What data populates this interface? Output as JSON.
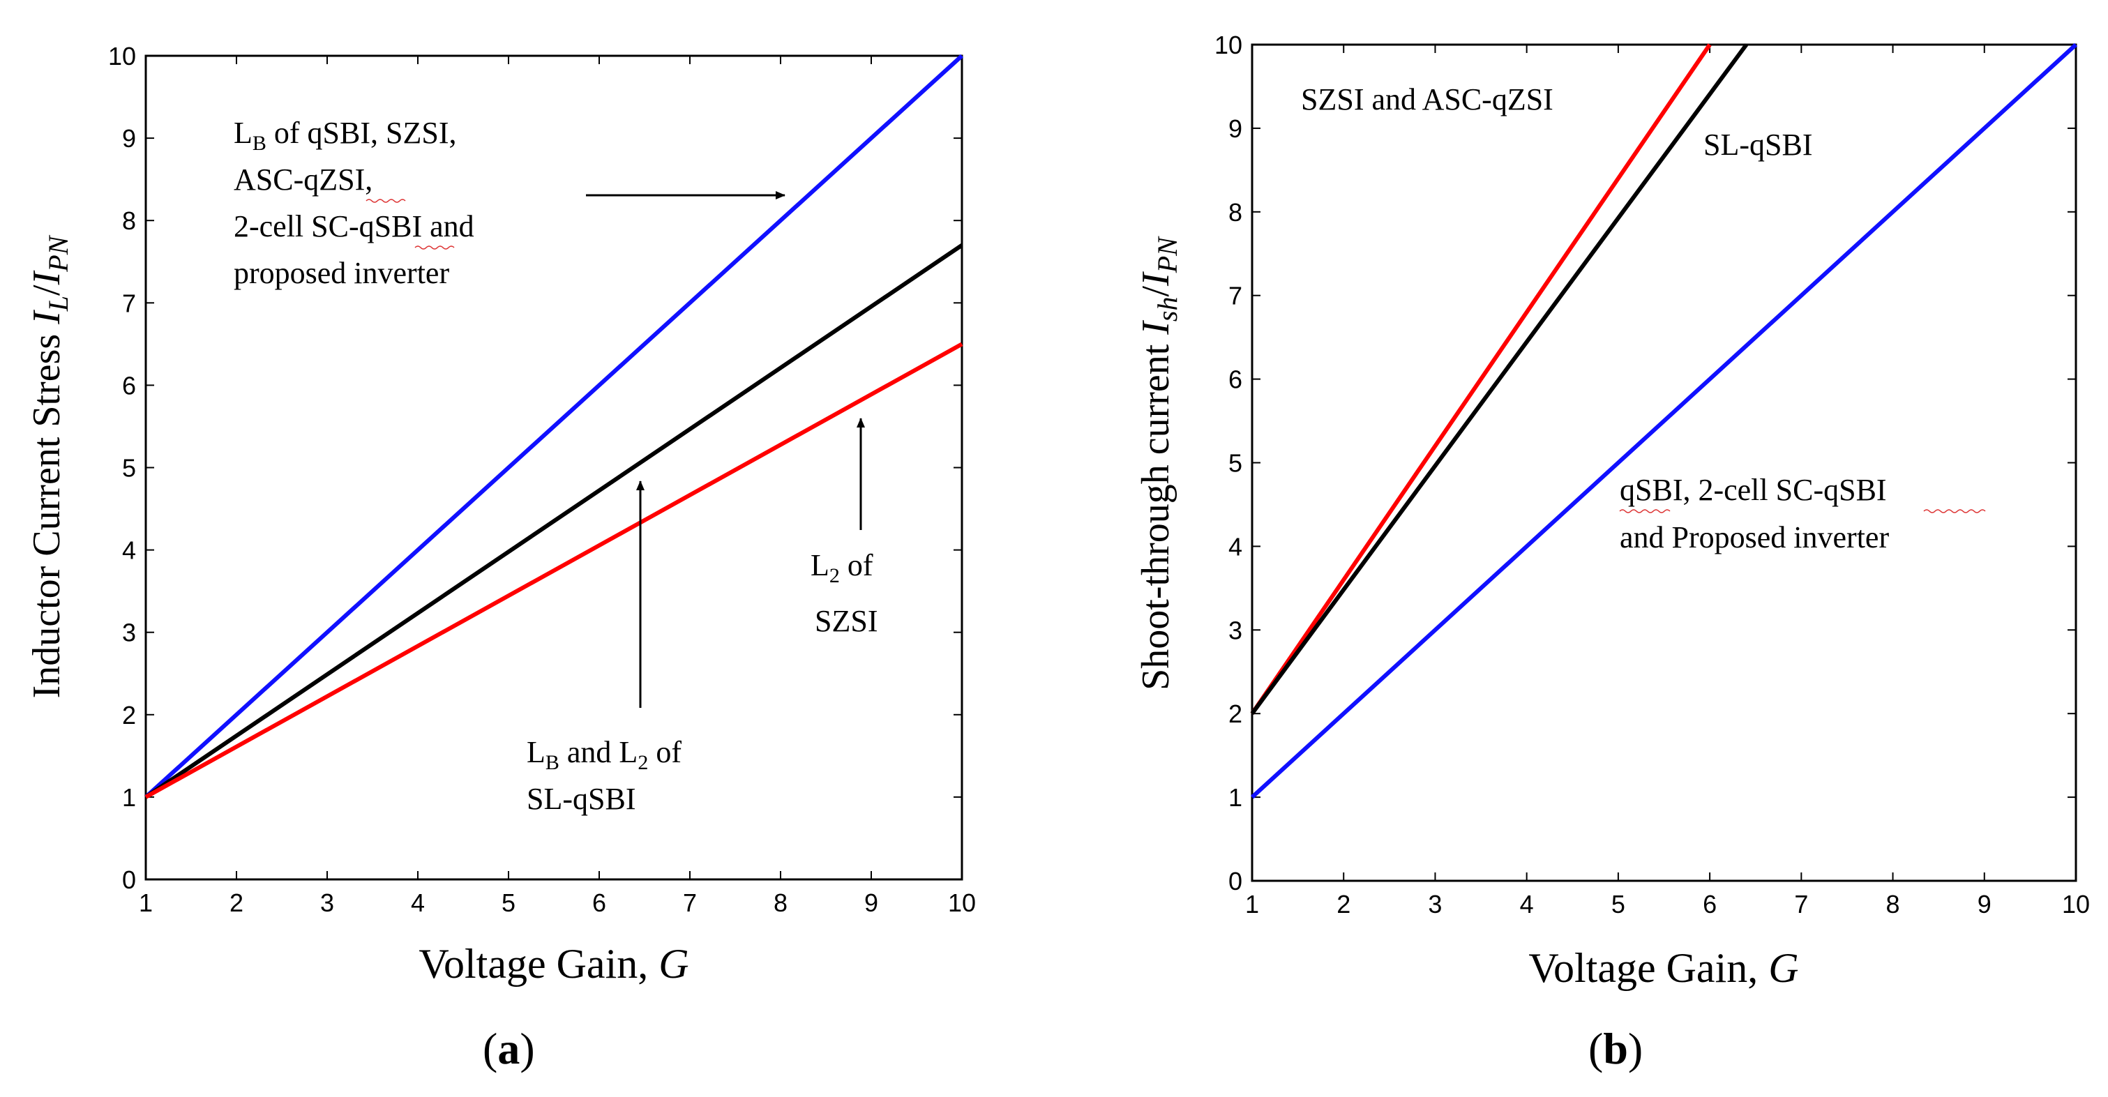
{
  "chart_data": [
    {
      "type": "line",
      "panel_label": "a",
      "xlabel": "Voltage Gain, ",
      "xlabel_var": "G",
      "ylabel": "Inductor Current Stress ",
      "ylabel_var": "I",
      "ylabel_var_sub": "L",
      "ylabel_den": "I",
      "ylabel_den_sub": "PN",
      "xlim": [
        1,
        10
      ],
      "ylim": [
        0,
        10
      ],
      "xticks": [
        "1",
        "2",
        "3",
        "4",
        "5",
        "6",
        "7",
        "8",
        "9",
        "10"
      ],
      "yticks": [
        "0",
        "1",
        "2",
        "3",
        "4",
        "5",
        "6",
        "7",
        "8",
        "9",
        "10"
      ],
      "grid": false,
      "series": [
        {
          "name": "LB of qSBI, SZSI, ASC-qZSI, 2-cell SC-qSBI and proposed inverter",
          "color": "#1010ff",
          "x": [
            1,
            10
          ],
          "y": [
            1,
            10
          ]
        },
        {
          "name": "LB and L2 of SL-qSBI",
          "color": "#000000",
          "x": [
            1,
            10
          ],
          "y": [
            1,
            7.7
          ]
        },
        {
          "name": "L2 of SZSI",
          "color": "#ff0000",
          "x": [
            1,
            10
          ],
          "y": [
            1,
            6.5
          ]
        }
      ],
      "annotations": [
        {
          "lines": [
            [
              "L",
              "B",
              " of qSBI, SZSI,"
            ],
            [
              "ASC-qZSI,"
            ],
            [
              "2-cell  SC-qSBI and"
            ],
            [
              "proposed inverter"
            ]
          ]
        },
        {
          "lines": [
            [
              "L",
              "B",
              " and L",
              "2",
              " of"
            ],
            [
              "SL-qSBI"
            ]
          ]
        },
        {
          "lines": [
            [
              "L",
              "2",
              " of"
            ],
            [
              "SZSI"
            ]
          ]
        }
      ]
    },
    {
      "type": "line",
      "panel_label": "b",
      "xlabel": "Voltage Gain, ",
      "xlabel_var": "G",
      "ylabel": "Shoot-through current ",
      "ylabel_var": "I",
      "ylabel_var_sub": "sh",
      "ylabel_den": "I",
      "ylabel_den_sub": "PN",
      "xlim": [
        1,
        10
      ],
      "ylim": [
        0,
        10
      ],
      "xticks": [
        "1",
        "2",
        "3",
        "4",
        "5",
        "6",
        "7",
        "8",
        "9",
        "10"
      ],
      "yticks": [
        "0",
        "1",
        "2",
        "3",
        "4",
        "5",
        "6",
        "7",
        "8",
        "9",
        "10"
      ],
      "grid": false,
      "series": [
        {
          "name": "SZSI and ASC-qZSI",
          "color": "#ff0000",
          "x": [
            1,
            6
          ],
          "y": [
            2,
            10
          ]
        },
        {
          "name": "SL-qSBI",
          "color": "#000000",
          "x": [
            1,
            6.4
          ],
          "y": [
            2,
            10
          ]
        },
        {
          "name": "qSBI, 2-cell SC-qSBI and Proposed inverter",
          "color": "#1010ff",
          "x": [
            1,
            10
          ],
          "y": [
            1,
            10
          ]
        }
      ],
      "annotations": [
        {
          "lines": [
            [
              "SZSI and ASC-qZSI"
            ]
          ]
        },
        {
          "lines": [
            [
              "SL-qSBI"
            ]
          ]
        },
        {
          "lines": [
            [
              "qSBI, 2-cell  SC-qSBI"
            ],
            [
              "and Proposed inverter"
            ]
          ]
        }
      ]
    }
  ]
}
